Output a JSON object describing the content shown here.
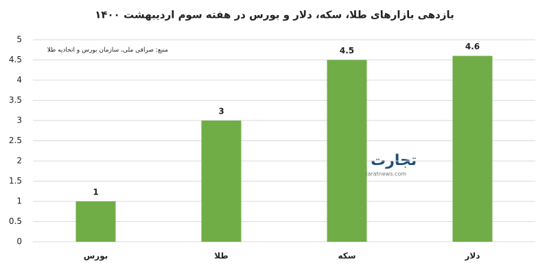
{
  "chart_data": {
    "type": "bar",
    "title": "بازدهی بازارهای طلا، سکه، دلار و بورس در هفته سوم اردیبهشت ۱۴۰۰",
    "annotation": "منبع: صرافی ملی، سازمان بورس و اتحادیه طلا",
    "watermark": {
      "logo": "تجارت نیوز",
      "url": "www.tejaratnews.com"
    },
    "categories": [
      "بورس",
      "طلا",
      "سکه",
      "دلار"
    ],
    "values": [
      1,
      3,
      4.5,
      4.6
    ],
    "color": "#70ad47",
    "ylim": [
      0,
      5
    ],
    "yticks": [
      0,
      0.5,
      1,
      1.5,
      2,
      2.5,
      3,
      3.5,
      4,
      4.5,
      5
    ],
    "grid": true
  }
}
